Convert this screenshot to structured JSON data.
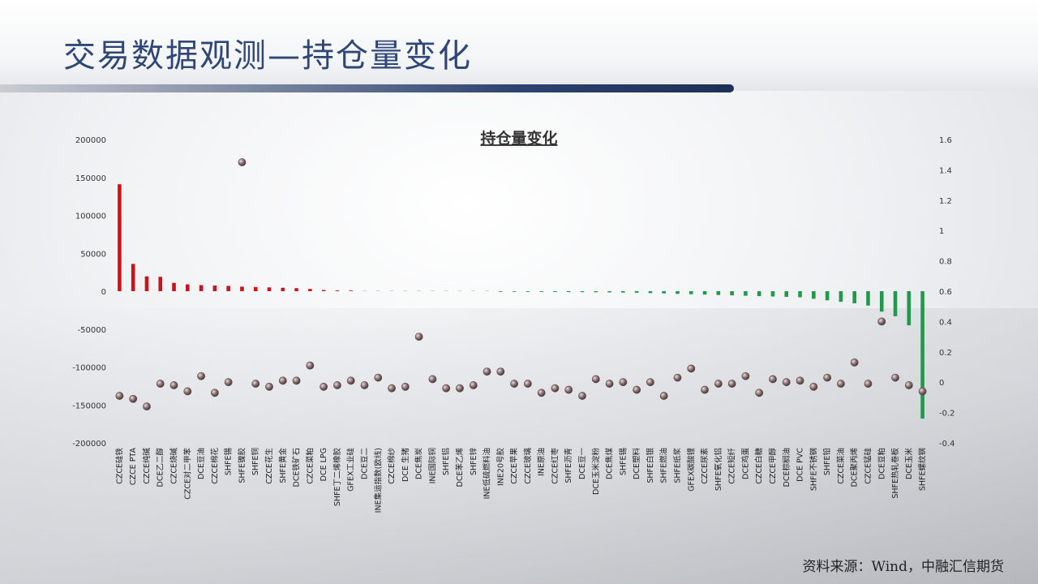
{
  "page": {
    "title": "交易数据观测—持仓量变化",
    "source": "资料来源：Wind，中融汇信期货"
  },
  "colors": {
    "positive_bar": "#c8151b",
    "negative_bar": "#1e9a4a",
    "marker": "#8a6f70",
    "title_text": "#2f4778"
  },
  "chart_data": {
    "type": "bar",
    "title": "持仓量变化",
    "categories": [
      "CZCE硅铁",
      "CZCE PTA",
      "CZCE纯碱",
      "DCE乙二醇",
      "CZCE烧碱",
      "CZCE对二甲苯",
      "DCE豆油",
      "CZCE棉花",
      "SHFE锡",
      "SHFE镍胶",
      "SHFE铜",
      "CZCE花生",
      "SHFE黄金",
      "DCE铁矿石",
      "CZCE菜粕",
      "DCE LPG",
      "SHFE丁二烯橡胶",
      "GFEX工业硅",
      "DCE豆二",
      "INE集运指数(欧线)",
      "CZCE棉纱",
      "DCE 生猪",
      "DCE焦炭",
      "INE国际铜",
      "SHFE铝",
      "DCE苯乙烯",
      "SHFE锌",
      "INE低硫燃料油",
      "INE20号胶",
      "CZCE苹果",
      "CZCE玻璃",
      "INE原油",
      "CZCE红枣",
      "SHFE沥青",
      "DCE豆一",
      "DCE玉米淀粉",
      "DCE焦煤",
      "SHFE锡",
      "DCE塑料",
      "SHFE白银",
      "SHFE燃油",
      "SHFE纸浆",
      "GFEX碳酸锂",
      "CZCE尿素",
      "SHFE氧化铝",
      "CZCE短纤",
      "DCE鸡蛋",
      "CZCE白糖",
      "CZCE甲醇",
      "DCE棕榈油",
      "DCE PVC",
      "SHFE不锈钢",
      "SHFE铅",
      "CZCE菜油",
      "DCE聚丙烯",
      "CZCE锰硅",
      "DCE豆粕",
      "SHFE热轧卷板",
      "DCE玉米",
      "SHFE螺纹钢"
    ],
    "series": [
      {
        "axis": "left",
        "values": [
          141000,
          36000,
          19500,
          19000,
          11000,
          9000,
          8000,
          7500,
          7000,
          6000,
          5500,
          5000,
          4500,
          4000,
          3000,
          1500,
          1000,
          500,
          0,
          0,
          0,
          0,
          0,
          0,
          0,
          0,
          0,
          0,
          -500,
          -800,
          -900,
          -1000,
          -1100,
          -1200,
          -1300,
          -1400,
          -1600,
          -1800,
          -2000,
          -2500,
          -3000,
          -3500,
          -4000,
          -4500,
          -5000,
          -5500,
          -6000,
          -6500,
          -7000,
          -7500,
          -8000,
          -10000,
          -12000,
          -14000,
          -16000,
          -19000,
          -27000,
          -33000,
          -45000,
          -168000
        ]
      },
      {
        "axis": "right",
        "values": [
          -0.09,
          -0.11,
          -0.16,
          -0.01,
          -0.02,
          -0.06,
          0.04,
          -0.07,
          0.0,
          1.45,
          -0.01,
          -0.03,
          0.01,
          0.01,
          0.11,
          -0.03,
          -0.02,
          0.01,
          -0.02,
          0.03,
          -0.04,
          -0.03,
          0.3,
          0.02,
          -0.04,
          -0.04,
          -0.02,
          0.07,
          0.07,
          -0.01,
          -0.01,
          -0.07,
          -0.04,
          -0.05,
          -0.09,
          0.02,
          -0.01,
          0.0,
          -0.05,
          0.0,
          -0.09,
          0.03,
          0.09,
          -0.05,
          -0.01,
          -0.01,
          0.04,
          -0.07,
          0.02,
          0.0,
          0.01,
          -0.03,
          0.03,
          -0.01,
          0.13,
          -0.01,
          0.4,
          0.03,
          -0.02,
          -0.06
        ]
      }
    ],
    "ylim_left": [
      -200000,
      200000
    ],
    "yticks_left": [
      "200000",
      "150000",
      "100000",
      "50000",
      "0",
      "-50000",
      "-100000",
      "-150000",
      "-200000"
    ],
    "ylim_right": [
      -0.4,
      1.6
    ],
    "yticks_right": [
      "1.6",
      "1.4",
      "1.2",
      "1",
      "0.8",
      "0.6",
      "0.4",
      "0.2",
      "0",
      "-0.2",
      "-0.4"
    ],
    "grid": false,
    "legend": "none"
  }
}
